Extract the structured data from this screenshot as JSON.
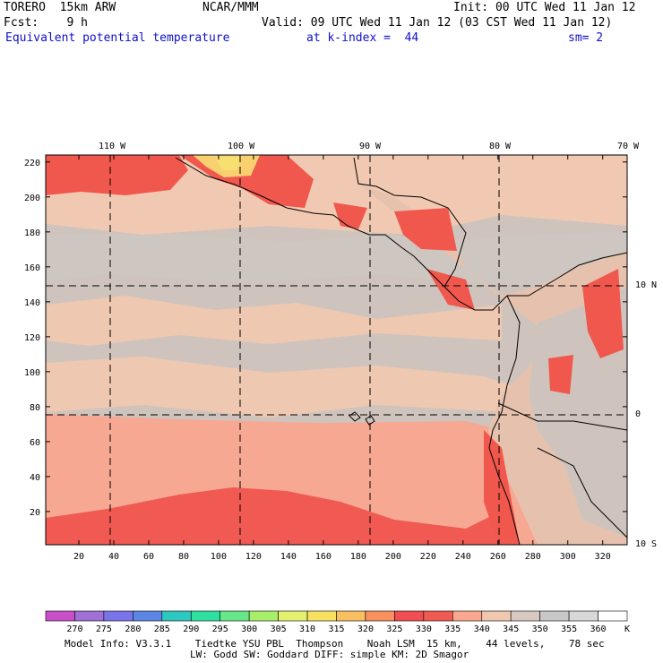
{
  "header": {
    "line1_left": "TORERO  15km ARW",
    "line1_mid": "NCAR/MMM",
    "line1_right": "Init: 00 UTC Wed 11 Jan 12",
    "line2_left": "Fcst:    9 h",
    "line2_right": "Valid: 09 UTC Wed 11 Jan 12 (03 CST Wed 11 Jan 12)",
    "line3_left": "Equivalent potential temperature",
    "line3_mid": "at k-index =  44",
    "line3_right": "sm= 2"
  },
  "map": {
    "lon_labels": [
      "110 W",
      "100 W",
      "90 W",
      "80 W",
      "70 W"
    ],
    "lat_labels": [
      "10 N",
      "0",
      "10 S"
    ],
    "x_ticks": [
      20,
      40,
      60,
      80,
      100,
      120,
      140,
      160,
      180,
      200,
      220,
      240,
      260,
      280,
      300,
      320
    ],
    "y_ticks": [
      20,
      40,
      60,
      80,
      100,
      120,
      140,
      160,
      180,
      200,
      220
    ],
    "x_range": [
      1,
      334
    ],
    "y_range": [
      1,
      224
    ]
  },
  "colorbar": {
    "levels": [
      "270",
      "275",
      "280",
      "285",
      "290",
      "295",
      "300",
      "305",
      "310",
      "315",
      "320",
      "325",
      "330",
      "335",
      "340",
      "345",
      "350",
      "355",
      "360"
    ],
    "unit": "K",
    "colors": [
      "#c84fc8",
      "#a070d8",
      "#7a74ea",
      "#5a86e6",
      "#2ec8c0",
      "#30e0a0",
      "#66e888",
      "#a8ee6a",
      "#e4f070",
      "#f8e060",
      "#f8c060",
      "#f89060",
      "#f04e50",
      "#f05a50",
      "#f8a890",
      "#f0c8b0",
      "#d8c8c0",
      "#c8c8c8",
      "#d8d8d8",
      "#ffffff"
    ]
  },
  "footer": {
    "line1": "Model Info: V3.3.1    Tiedtke YSU PBL  Thompson    Noah LSM  15 km,    44 levels,    78 sec",
    "line2": "LW: Godd SW: Goddard DIFF: simple KM: 2D Smagor"
  }
}
